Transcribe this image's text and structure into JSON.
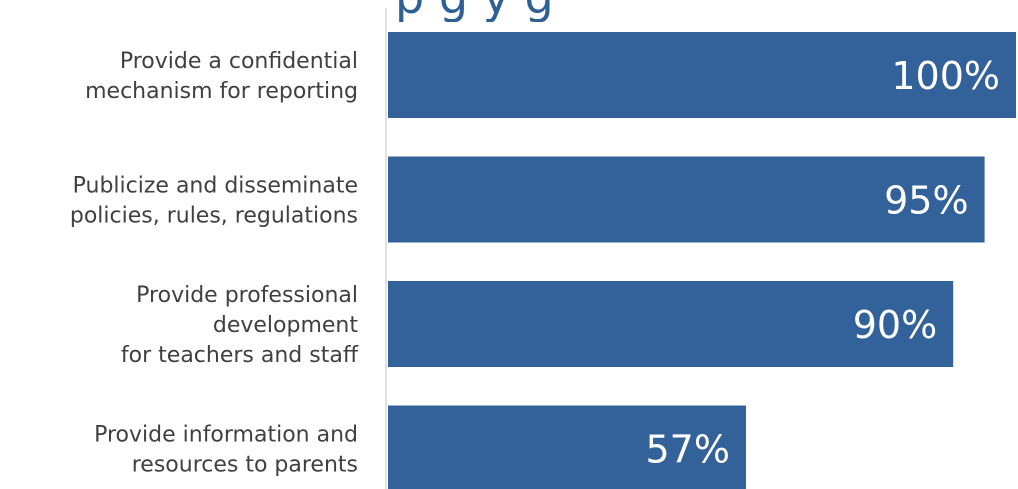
{
  "chart_data": {
    "type": "bar",
    "orientation": "horizontal",
    "title_fragment": "p        g y g",
    "categories": [
      [
        "Provide a confidential",
        "mechanism for reporting"
      ],
      [
        "Publicize and disseminate",
        "policies, rules, regulations"
      ],
      [
        "Provide professional",
        "development",
        "for teachers and staff"
      ],
      [
        "Provide information and",
        "resources to parents"
      ]
    ],
    "values": [
      100,
      95,
      90,
      57
    ],
    "value_labels": [
      "100%",
      "95%",
      "90%",
      "57%"
    ],
    "xlim": [
      0,
      100
    ],
    "grid": false,
    "legend": "none",
    "colors": {
      "bar": "#336199",
      "value_text": "#ffffff",
      "category_text": "#404040",
      "axis": "#d9d9d9"
    }
  }
}
